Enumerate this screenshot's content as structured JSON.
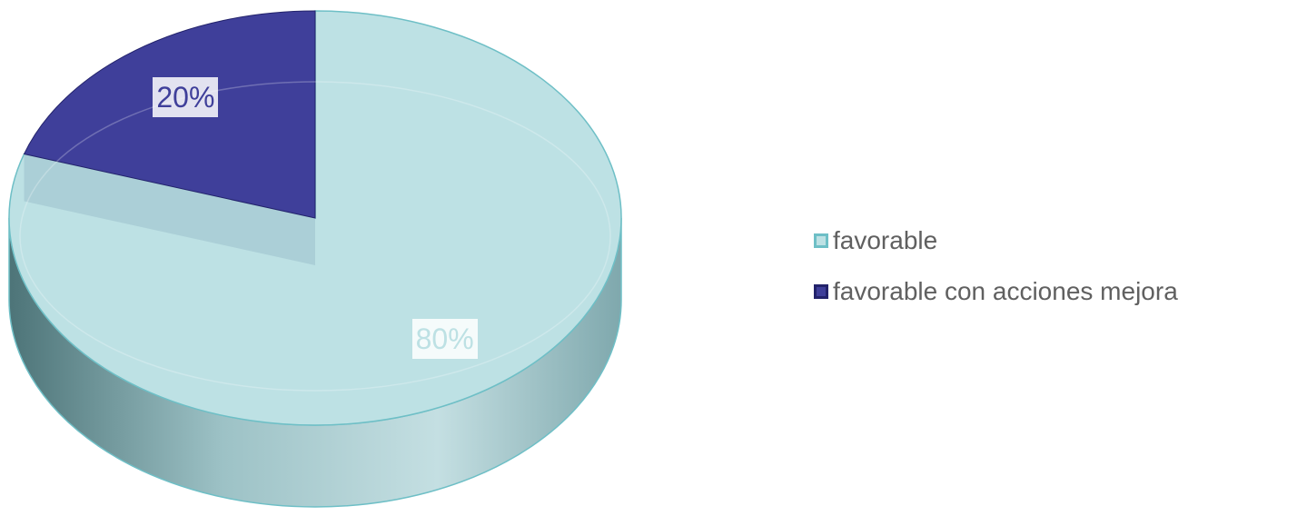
{
  "chart_data": {
    "type": "pie",
    "title": "",
    "slices": [
      {
        "label": "favorable",
        "value": 80,
        "data_label": "80%",
        "color": "#bde1e4",
        "edge_color": "#6ebfc6",
        "label_color": "#bde1e4"
      },
      {
        "label": "favorable con acciones mejora",
        "value": 20,
        "data_label": "20%",
        "color": "#3f3f9a",
        "edge_color": "#23236b",
        "label_color": "#3f3f9a"
      }
    ],
    "start_angle_deg": 0,
    "three_d": true,
    "exploded_slice": "favorable con acciones mejora",
    "legend_position": "right"
  }
}
